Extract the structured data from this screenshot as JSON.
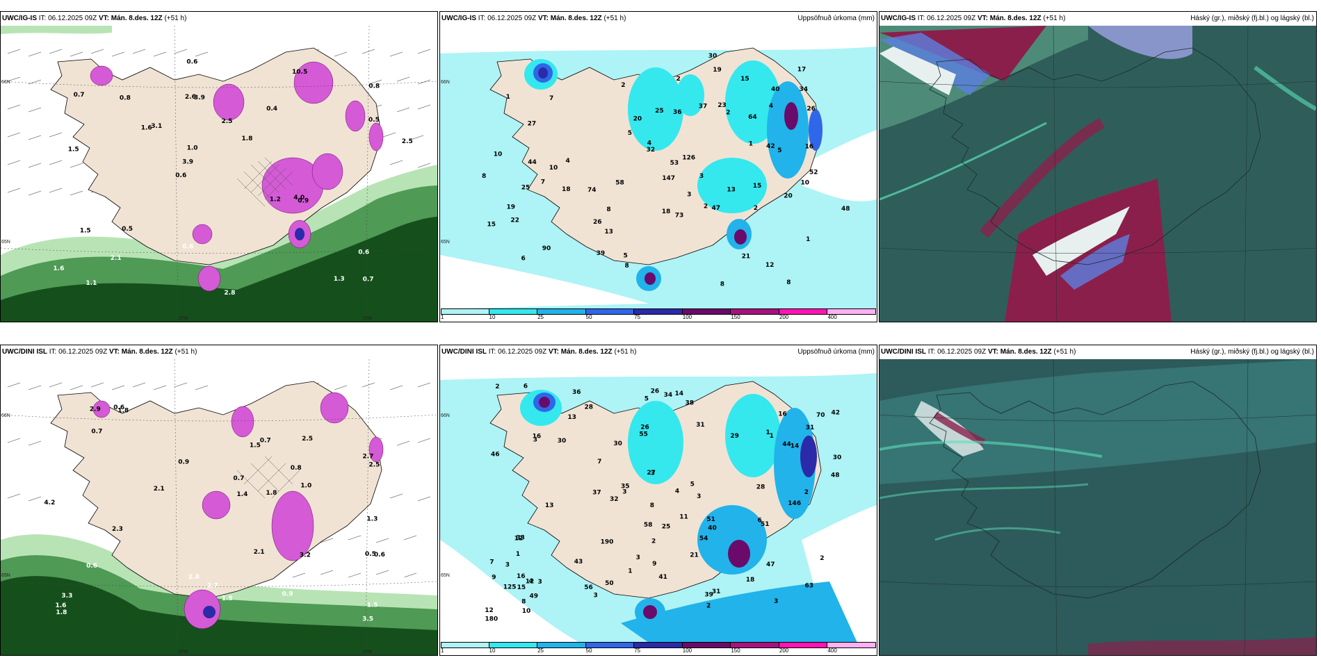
{
  "panels": [
    {
      "id": "p1",
      "model": "UWC/IG-IS",
      "it_label": "IT:",
      "it_value": "06.12.2025 09Z",
      "vt_label": "VT:",
      "vt_value": "Mán. 8.des. 12Z",
      "lead": "(+51 h)",
      "field": "",
      "map_labels": [
        "0.7",
        "1.5",
        "0.8",
        "0.6",
        "0.4",
        "1.1",
        "2.6",
        "2.5",
        "1.5",
        "3.1",
        "1.6",
        "2.1",
        "3.9",
        "1.8",
        "0.9",
        "0.7",
        "0.6",
        "2.5",
        "1.2",
        "0.5",
        "3.9",
        "0.6",
        "1.0",
        "0.8",
        "10.5",
        "0.5",
        "1.3",
        "0.6",
        "4.0",
        "2.8",
        "1.6"
      ],
      "coords": [
        "66N",
        "65N",
        "64N",
        "20W",
        "15W"
      ]
    },
    {
      "id": "p2",
      "model": "UWC/IG-IS",
      "it_label": "IT:",
      "it_value": "06.12.2025 09Z",
      "vt_label": "VT:",
      "vt_value": "Mán. 8.des. 12Z",
      "lead": "(+51 h)",
      "field": "Uppsöfnuð úrkoma (mm)",
      "map_labels": [
        "8",
        "7",
        "2",
        "1",
        "1",
        "27",
        "90",
        "74",
        "64",
        "25",
        "2",
        "12",
        "13",
        "2",
        "3",
        "22",
        "15",
        "53",
        "10",
        "6",
        "17",
        "36",
        "42",
        "48",
        "52",
        "44",
        "18",
        "147",
        "32",
        "34",
        "47",
        "25",
        "26",
        "23",
        "20",
        "20",
        "10",
        "21",
        "40",
        "8",
        "8",
        "73",
        "39",
        "30",
        "58",
        "10",
        "26",
        "19",
        "37",
        "18",
        "13",
        "16",
        "2",
        "5",
        "5",
        "8",
        "8",
        "4",
        "3",
        "1",
        "5",
        "4",
        "7",
        "2",
        "15",
        "19",
        "4",
        "126",
        "15"
      ],
      "coords": [
        "66N",
        "65N"
      ],
      "colorbar_ticks": [
        "1",
        "10",
        "25",
        "50",
        "75",
        "100",
        "150",
        "200",
        "400"
      ]
    },
    {
      "id": "p3",
      "model": "UWC/IG-IS",
      "it_label": "IT:",
      "it_value": "06.12.2025 09Z",
      "vt_label": "VT:",
      "vt_value": "Mán. 8.des. 12Z",
      "lead": "(+51 h)",
      "field": "Háský (gr.), miðský (fj.bl.) og lágský (bl.)",
      "map_labels": [],
      "coords": []
    },
    {
      "id": "p4",
      "model": "UWC/DINI ISL",
      "it_label": "IT:",
      "it_value": "06.12.2025 09Z",
      "vt_label": "VT:",
      "vt_value": "Mán. 8.des. 12Z",
      "lead": "(+51 h)",
      "field": "",
      "map_labels": [
        "0.6",
        "1.8",
        "0.5",
        "1.0",
        "0.7",
        "2.4",
        "0.7",
        "0.8",
        "0.6",
        "3.3",
        "1.8",
        "2.1",
        "1.3",
        "1.5",
        "2.9",
        "2.8",
        "3.5",
        "2.7",
        "1.5",
        "3.2",
        "2.3",
        "2.5",
        "2.1",
        "0.9",
        "0.6",
        "4.2",
        "16.",
        "0.9",
        "0.7",
        "1.0",
        "2.7",
        "1.6",
        "1.4",
        "2.5",
        "1.8",
        "1.5"
      ],
      "coords": [
        "66N",
        "65N",
        "64N",
        "20W",
        "15W"
      ]
    },
    {
      "id": "p5",
      "model": "UWC/DINI ISL",
      "it_label": "IT:",
      "it_value": "06.12.2025 09Z",
      "vt_label": "VT:",
      "vt_value": "Mán. 8.des. 12Z",
      "lead": "(+51 h)",
      "field": "Uppsöfnuð úrkoma (mm)",
      "map_labels": [
        "13",
        "2",
        "3",
        "3",
        "1",
        "3",
        "3",
        "56",
        "190",
        "70",
        "1",
        "28",
        "16",
        "42",
        "50",
        "38",
        "49",
        "44",
        "14",
        "39",
        "33",
        "35",
        "28",
        "27",
        "58",
        "63",
        "43",
        "125",
        "32",
        "16",
        "11",
        "2",
        "41",
        "36",
        "21",
        "31",
        "25",
        "180",
        "8",
        "40",
        "16",
        "26",
        "48",
        "13",
        "146",
        "14",
        "5",
        "9",
        "51",
        "31",
        "37",
        "54",
        "29",
        "7",
        "4",
        "3",
        "34",
        "4",
        "15",
        "12",
        "3",
        "12",
        "8",
        "7",
        "26",
        "31",
        "30",
        "9",
        "47",
        "2",
        "3",
        "6",
        "3",
        "1",
        "30",
        "10",
        "6",
        "1",
        "12",
        "18",
        "2",
        "5",
        "46",
        "55",
        "51",
        "30",
        "2",
        "3"
      ],
      "coords": [
        "66N",
        "65N"
      ],
      "colorbar_ticks": [
        "1",
        "10",
        "25",
        "50",
        "75",
        "100",
        "150",
        "200",
        "400"
      ]
    },
    {
      "id": "p6",
      "model": "UWC/DINI ISL",
      "it_label": "IT:",
      "it_value": "06.12.2025 09Z",
      "vt_label": "VT:",
      "vt_value": "Mán. 8.des. 12Z",
      "lead": "(+51 h)",
      "field": "Háský (gr.), miðský (fj.bl.) og lágský (bl.)",
      "map_labels": [],
      "coords": []
    }
  ],
  "colors": {
    "land": "#f0e3d4",
    "precip_bins": [
      "#ffffff",
      "#aef3f6",
      "#34e8ee",
      "#21b3ea",
      "#3066e8",
      "#2b2aa8",
      "#6a0a6a",
      "#a8117f",
      "#ff14b3",
      "#ffb0f2"
    ],
    "cloud_base": "#2d5a5a",
    "green_dark": "#15501c",
    "green_mid": "#4f9a55",
    "green_light": "#b8e4b5",
    "magenta": "#d45ad6"
  }
}
